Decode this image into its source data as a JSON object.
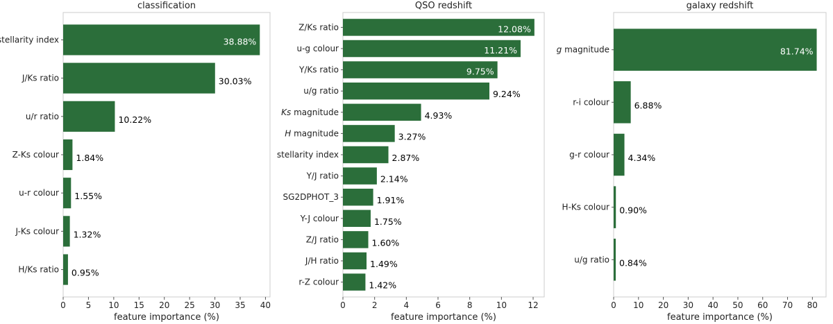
{
  "chart_data": [
    {
      "type": "bar",
      "orientation": "horizontal",
      "title": "classification",
      "xlabel": "feature importance (%)",
      "ylabel": "",
      "xlim": [
        0,
        40.9
      ],
      "xticks": [
        0,
        5,
        10,
        15,
        20,
        25,
        30,
        35,
        40
      ],
      "categories": [
        "stellarity index",
        "J/Ks ratio",
        "u/r ratio",
        "Z-Ks colour",
        "u-r colour",
        "J-Ks colour",
        "H/Ks ratio"
      ],
      "values": [
        38.88,
        30.03,
        10.22,
        1.84,
        1.55,
        1.32,
        0.95
      ],
      "data_labels": [
        "38.88%",
        "30.03%",
        "10.22%",
        "1.84%",
        "1.55%",
        "1.32%",
        "0.95%"
      ],
      "bar_color": "#2b6e3a",
      "grid": false
    },
    {
      "type": "bar",
      "orientation": "horizontal",
      "title": "QSO redshift",
      "xlabel": "feature importance (%)",
      "ylabel": "",
      "xlim": [
        0,
        12.7
      ],
      "xticks": [
        0,
        2,
        4,
        6,
        8,
        10,
        12
      ],
      "categories": [
        "Z/Ks ratio",
        "u-g colour",
        "Y/Ks ratio",
        "u/g ratio",
        "Ks magnitude",
        "H magnitude",
        "stellarity index",
        "Y/J ratio",
        "SG2DPHOT_3",
        "Y-J colour",
        "Z/J ratio",
        "J/H ratio",
        "r-Z colour"
      ],
      "italic_categories": [
        "Ks",
        "H"
      ],
      "values": [
        12.08,
        11.21,
        9.75,
        9.24,
        4.93,
        3.27,
        2.87,
        2.14,
        1.91,
        1.75,
        1.6,
        1.49,
        1.42
      ],
      "data_labels": [
        "12.08%",
        "11.21%",
        "9.75%",
        "9.24%",
        "4.93%",
        "3.27%",
        "2.87%",
        "2.14%",
        "1.91%",
        "1.75%",
        "1.60%",
        "1.49%",
        "1.42%"
      ],
      "bar_color": "#2b6e3a",
      "grid": false
    },
    {
      "type": "bar",
      "orientation": "horizontal",
      "title": "galaxy redshift",
      "xlabel": "feature importance (%)",
      "ylabel": "",
      "xlim": [
        0,
        85.5
      ],
      "xticks": [
        0,
        10,
        20,
        30,
        40,
        50,
        60,
        70,
        80
      ],
      "categories": [
        "g magnitude",
        "r-i colour",
        "g-r colour",
        "H-Ks colour",
        "u/g ratio"
      ],
      "italic_categories": [
        "g"
      ],
      "values": [
        81.74,
        6.88,
        4.34,
        0.9,
        0.84
      ],
      "data_labels": [
        "81.74%",
        "6.88%",
        "4.34%",
        "0.90%",
        "0.84%"
      ],
      "bar_color": "#2b6e3a",
      "grid": false
    }
  ]
}
